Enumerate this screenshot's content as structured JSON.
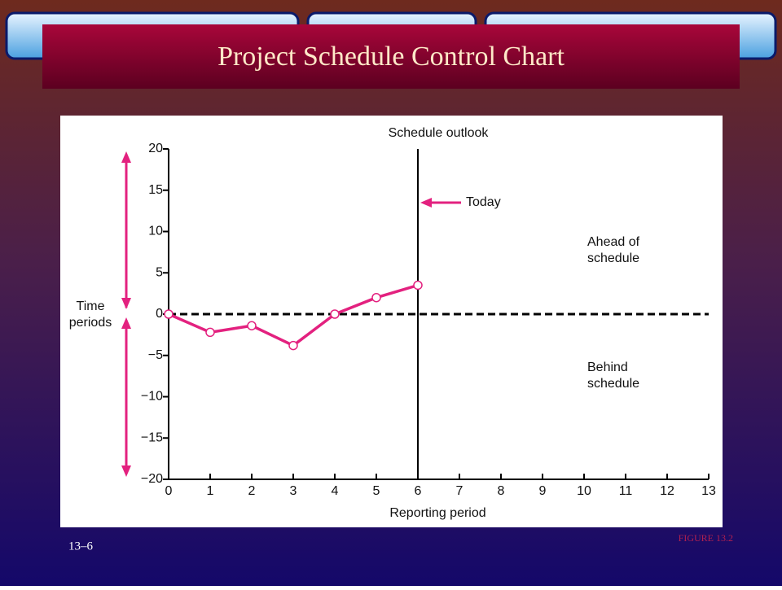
{
  "slide": {
    "title": "Project Schedule Control Chart",
    "page_number": "13–6",
    "figure_label": "FIGURE 13.2"
  },
  "chart_data": {
    "type": "line",
    "title": "Schedule outlook",
    "x_label": "Reporting period",
    "y_label": [
      "Time",
      "periods"
    ],
    "annotations": {
      "today": "Today",
      "ahead": [
        "Ahead of",
        "schedule"
      ],
      "behind": [
        "Behind",
        "schedule"
      ]
    },
    "x": [
      0,
      1,
      2,
      3,
      4,
      5,
      6
    ],
    "series": [
      {
        "color": "#e3217f",
        "values": [
          0,
          -2.2,
          -1.4,
          -3.8,
          0,
          2,
          3.5
        ]
      }
    ],
    "xlim": [
      0,
      13
    ],
    "xticks": [
      0,
      1,
      2,
      3,
      4,
      5,
      6,
      7,
      8,
      9,
      10,
      11,
      12,
      13
    ],
    "ylim": [
      -20,
      20
    ],
    "yticks": [
      {
        "value": -20,
        "label": "−20"
      },
      {
        "value": -15,
        "label": "−15"
      },
      {
        "value": -10,
        "label": "−10"
      },
      {
        "value": -5,
        "label": "−5"
      },
      0,
      5,
      10,
      15,
      20
    ]
  }
}
